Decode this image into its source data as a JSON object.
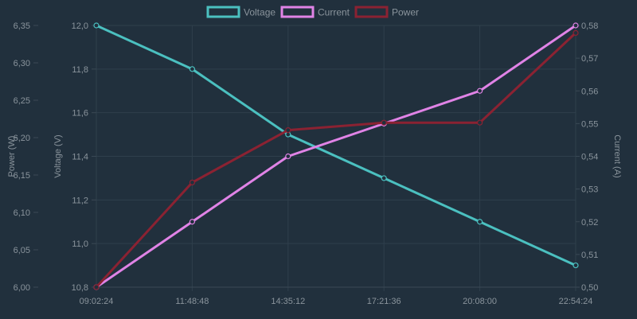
{
  "chart_data": {
    "type": "line",
    "x": [
      "09:02:24",
      "11:48:48",
      "14:35:12",
      "17:21:36",
      "20:08:00",
      "22:54:24"
    ],
    "series": [
      {
        "name": "Voltage",
        "axis": "voltage",
        "color": "#4bc0c0",
        "values": [
          12.0,
          11.8,
          11.5,
          11.3,
          11.1,
          10.9
        ]
      },
      {
        "name": "Current",
        "axis": "current",
        "color": "#e083e6",
        "values": [
          0.5,
          0.52,
          0.54,
          0.55,
          0.56,
          0.58
        ]
      },
      {
        "name": "Power",
        "axis": "power",
        "color": "#8b2232",
        "values": [
          6.0,
          6.14,
          6.21,
          6.22,
          6.22,
          6.34
        ]
      }
    ],
    "axes": {
      "power": {
        "label": "Power (W)",
        "position": "left-outer",
        "ylim": [
          6.0,
          6.35
        ],
        "ticks": [
          "6,00",
          "6,05",
          "6,10",
          "6,15",
          "6,20",
          "6,25",
          "6,30",
          "6,35"
        ]
      },
      "voltage": {
        "label": "Voltage (V)",
        "position": "left-inner",
        "ylim": [
          10.8,
          12.0
        ],
        "ticks": [
          "10,8",
          "11,0",
          "11,2",
          "11,4",
          "11,6",
          "11,8",
          "12,0"
        ]
      },
      "current": {
        "label": "Current (A)",
        "position": "right",
        "ylim": [
          0.5,
          0.58
        ],
        "ticks": [
          "0,50",
          "0,51",
          "0,52",
          "0,53",
          "0,54",
          "0,55",
          "0,56",
          "0,57",
          "0,58"
        ]
      }
    },
    "legend": "top-center",
    "grid": true
  }
}
